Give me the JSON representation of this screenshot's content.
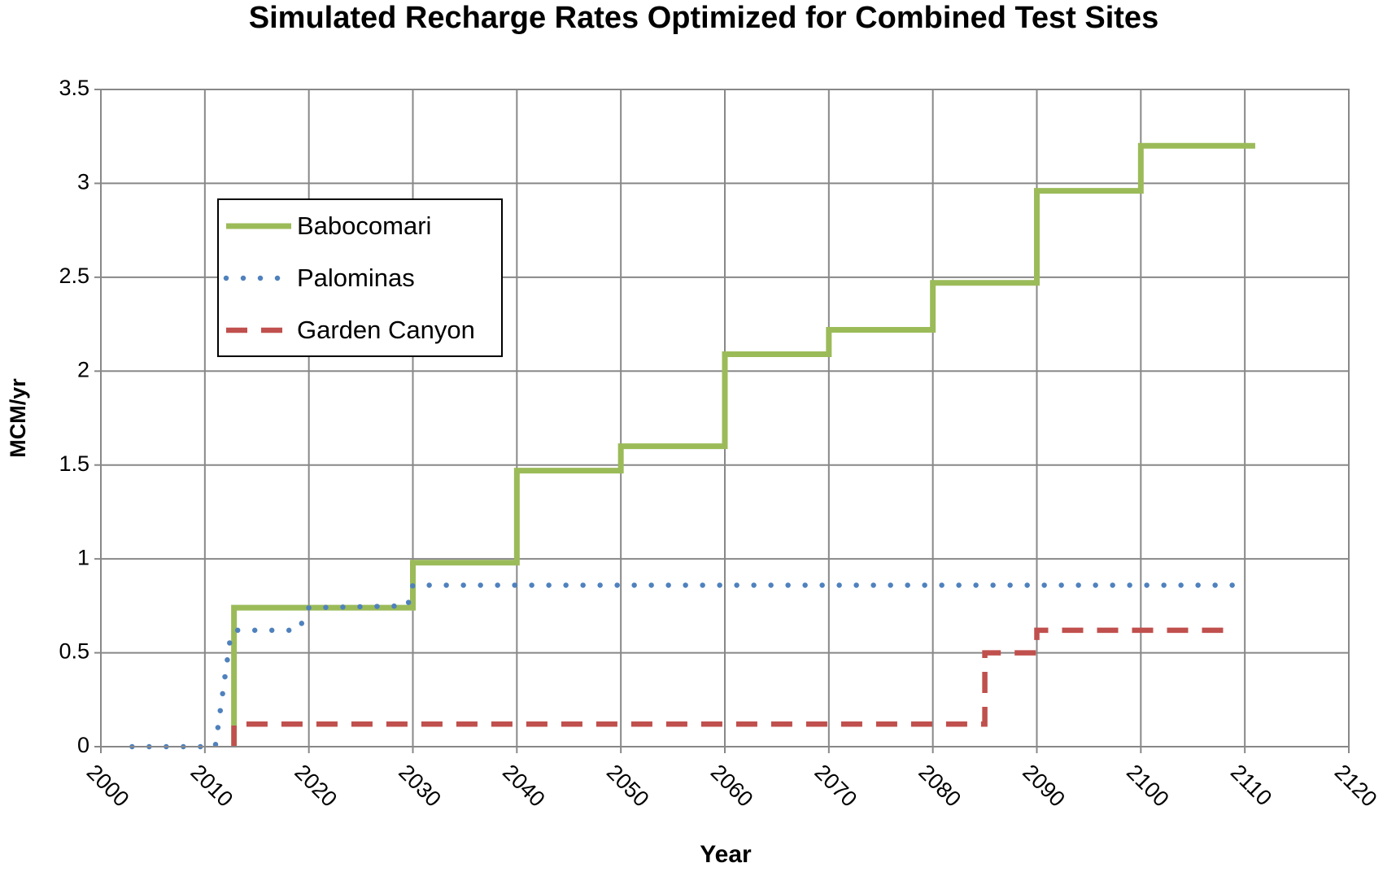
{
  "chart_data": {
    "type": "line",
    "title": "Simulated Recharge Rates Optimized for Combined Test Sites",
    "xlabel": "Year",
    "ylabel": "MCM/yr",
    "xlim": [
      2000,
      2120
    ],
    "xticks": [
      2000,
      2010,
      2020,
      2030,
      2040,
      2050,
      2060,
      2070,
      2080,
      2090,
      2100,
      2110,
      2120
    ],
    "ylim": [
      0,
      3.5
    ],
    "yticks": [
      0,
      0.5,
      1,
      1.5,
      2,
      2.5,
      3,
      3.5
    ],
    "grid": true,
    "legend": "upper left",
    "series": [
      {
        "name": "Babocomari",
        "color": "#9bbb59",
        "style": "solid",
        "x": [
          2012.8,
          2012.8,
          2030,
          2030,
          2040,
          2040,
          2050,
          2050,
          2060,
          2060,
          2070,
          2070,
          2080,
          2080,
          2090,
          2090,
          2100,
          2100,
          2111
        ],
        "values": [
          0,
          0.74,
          0.74,
          0.98,
          0.98,
          1.47,
          1.47,
          1.6,
          1.6,
          2.09,
          2.09,
          2.22,
          2.22,
          2.47,
          2.47,
          2.96,
          2.96,
          3.2,
          3.2
        ]
      },
      {
        "name": "Palominas",
        "color": "#4f81bd",
        "style": "dotted",
        "x": [
          2003,
          2011,
          2012.5,
          2013,
          2019,
          2020,
          2029.5,
          2030,
          2109
        ],
        "values": [
          0,
          0,
          0.6,
          0.62,
          0.62,
          0.74,
          0.75,
          0.86,
          0.86
        ]
      },
      {
        "name": "Garden Canyon",
        "color": "#c0504d",
        "style": "dashed",
        "x": [
          2012.8,
          2012.8,
          2085,
          2085,
          2090,
          2090,
          2109
        ],
        "values": [
          0,
          0.12,
          0.12,
          0.5,
          0.5,
          0.62,
          0.62
        ]
      }
    ]
  }
}
